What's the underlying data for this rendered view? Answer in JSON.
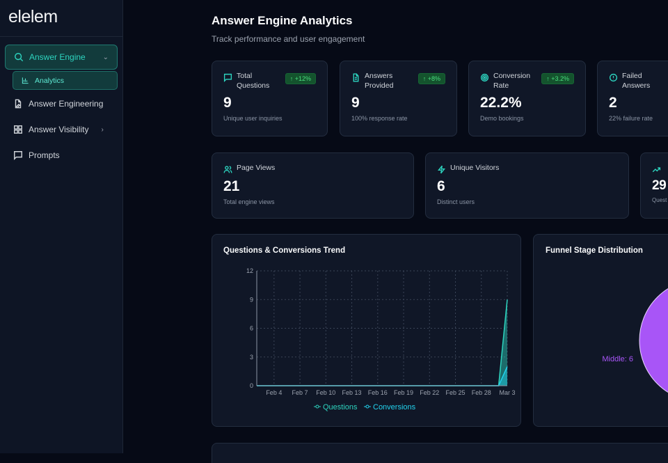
{
  "brand": "elelem",
  "sidebar": {
    "items": [
      {
        "label": "Answer Engine",
        "icon": "search-icon"
      },
      {
        "label": "Analytics",
        "icon": "bar-chart-icon"
      },
      {
        "label": "Answer Engineering",
        "icon": "file-edit-icon"
      },
      {
        "label": "Answer Visibility",
        "icon": "grid-icon"
      },
      {
        "label": "Prompts",
        "icon": "message-icon"
      }
    ]
  },
  "header": {
    "title": "Answer Engine Analytics",
    "subtitle": "Track performance and user engagement"
  },
  "stats": [
    {
      "label": "Total Questions",
      "value": "9",
      "note": "Unique user inquiries",
      "badge": "↑ +12%"
    },
    {
      "label": "Answers Provided",
      "value": "9",
      "note": "100% response rate",
      "badge": "↑ +8%"
    },
    {
      "label": "Conversion Rate",
      "value": "22.2%",
      "note": "Demo bookings",
      "badge": "↑ +3.2%"
    },
    {
      "label": "Failed Answers",
      "value": "2",
      "note": "22% failure rate"
    }
  ],
  "stats2": [
    {
      "label": "Page Views",
      "value": "21",
      "note": "Total engine views"
    },
    {
      "label": "Unique Visitors",
      "value": "6",
      "note": "Distinct users"
    },
    {
      "label": "",
      "value": "29",
      "note": "Quest"
    }
  ],
  "colors": {
    "accent": "#2dd4bf",
    "conversions": "#22d3ee",
    "middle": "#a855f7"
  },
  "chart_data": [
    {
      "type": "area",
      "title": "Questions & Conversions Trend",
      "x": [
        "Feb 2",
        "Feb 3",
        "Feb 4",
        "Feb 5",
        "Feb 6",
        "Feb 7",
        "Feb 8",
        "Feb 9",
        "Feb 10",
        "Feb 11",
        "Feb 12",
        "Feb 13",
        "Feb 14",
        "Feb 15",
        "Feb 16",
        "Feb 17",
        "Feb 18",
        "Feb 19",
        "Feb 20",
        "Feb 21",
        "Feb 22",
        "Feb 23",
        "Feb 24",
        "Feb 25",
        "Feb 26",
        "Feb 27",
        "Feb 28",
        "Mar 1",
        "Mar 2",
        "Mar 3"
      ],
      "xticks": [
        "Feb 4",
        "Feb 7",
        "Feb 10",
        "Feb 13",
        "Feb 16",
        "Feb 19",
        "Feb 22",
        "Feb 25",
        "Feb 28",
        "Mar 3"
      ],
      "yticks": [
        "0",
        "3",
        "6",
        "9",
        "12"
      ],
      "ylim": [
        0,
        12
      ],
      "grid": true,
      "legend": "bottom",
      "series": [
        {
          "name": "Questions",
          "values": [
            0,
            0,
            0,
            0,
            0,
            0,
            0,
            0,
            0,
            0,
            0,
            0,
            0,
            0,
            0,
            0,
            0,
            0,
            0,
            0,
            0,
            0,
            0,
            0,
            0,
            0,
            0,
            0,
            0,
            9
          ]
        },
        {
          "name": "Conversions",
          "values": [
            0,
            0,
            0,
            0,
            0,
            0,
            0,
            0,
            0,
            0,
            0,
            0,
            0,
            0,
            0,
            0,
            0,
            0,
            0,
            0,
            0,
            0,
            0,
            0,
            0,
            0,
            0,
            0,
            0,
            2
          ]
        }
      ]
    },
    {
      "type": "pie",
      "title": "Funnel Stage Distribution",
      "slices": [
        {
          "label": "Middle",
          "value": 6
        }
      ],
      "labels": [
        "Middle: 6"
      ]
    }
  ]
}
